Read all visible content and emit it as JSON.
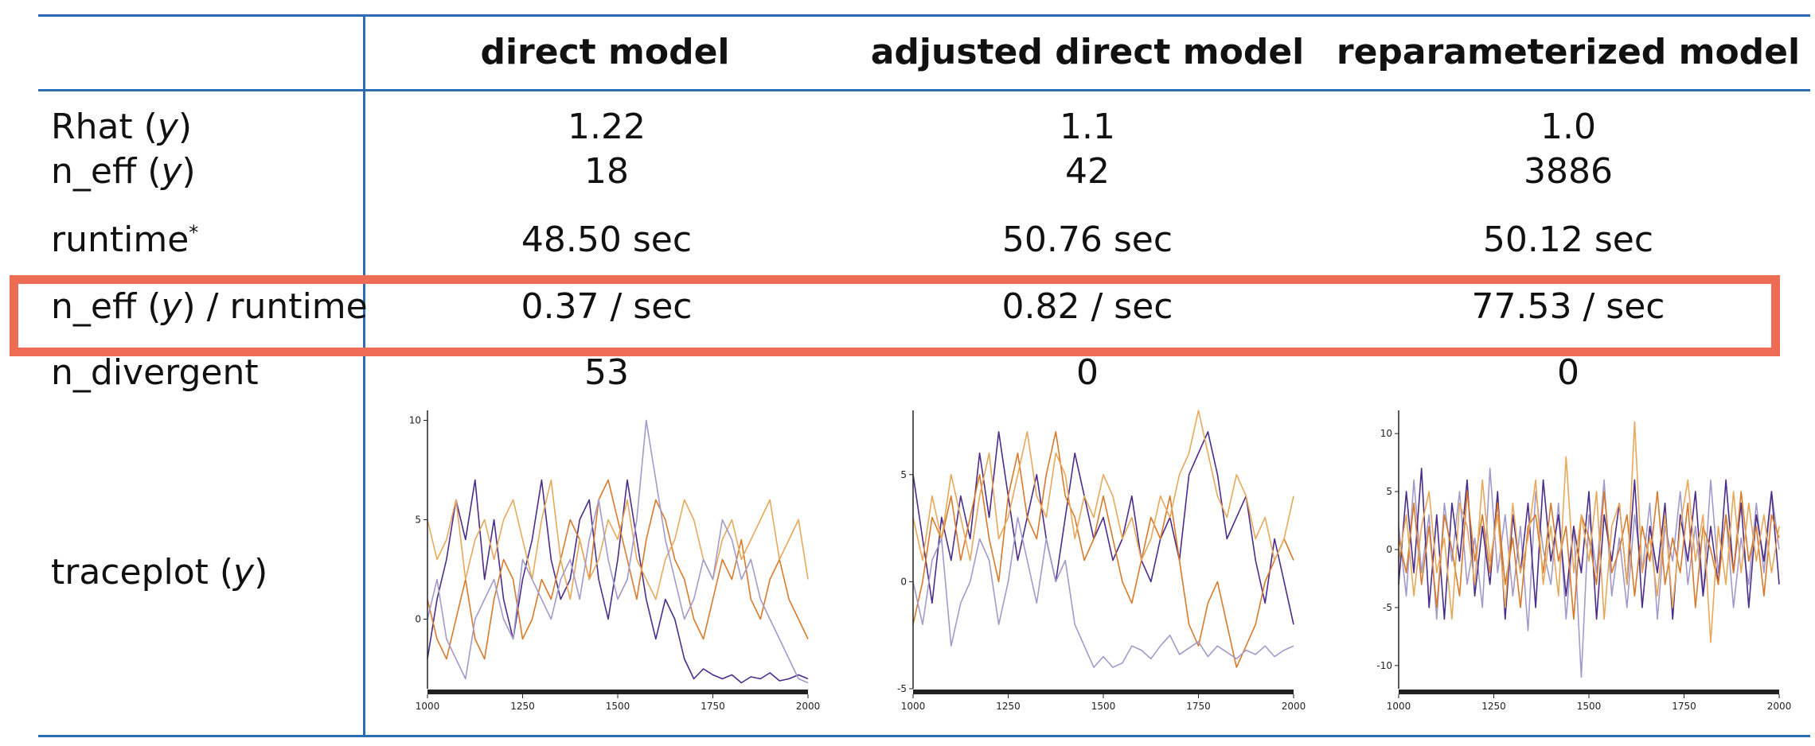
{
  "table": {
    "columns": [
      "direct model",
      "adjusted direct model",
      "reparameterized model"
    ],
    "rows": [
      {
        "label_prefix": "Rhat (",
        "label_var": "y",
        "label_suffix": ")",
        "values": [
          "1.22",
          "1.1",
          "1.0"
        ]
      },
      {
        "label_prefix": "n_eff (",
        "label_var": "y",
        "label_suffix": ")",
        "values": [
          "18",
          "42",
          "3886"
        ]
      },
      {
        "label_prefix": "runtime",
        "label_sup": "*",
        "values": [
          "48.50 sec",
          "50.76 sec",
          "50.12 sec"
        ]
      },
      {
        "label_prefix": "n_eff (",
        "label_var": "y",
        "label_suffix": ") / runtime",
        "values": [
          "0.37 / sec",
          "0.82 / sec",
          "77.53 / sec"
        ]
      },
      {
        "label_prefix": "n_divergent",
        "values": [
          "53",
          "0",
          "0"
        ]
      },
      {
        "label_prefix": "traceplot (",
        "label_var": "y",
        "label_suffix": ")"
      }
    ],
    "highlight_color": "#ee6b55",
    "rule_color": "#2d6bb5"
  },
  "chart_data": [
    {
      "type": "line",
      "title": "",
      "xlim": [
        1000,
        2000
      ],
      "ylim": [
        -3.5,
        10.5
      ],
      "xticks": [
        1000,
        1250,
        1500,
        1750,
        2000
      ],
      "yticks": [
        0,
        5,
        10
      ],
      "xlabel": "",
      "ylabel": "",
      "grid": false,
      "series": [
        {
          "color": "#4b2c8a",
          "values": [
            -2,
            1,
            3,
            6,
            4,
            7,
            2,
            5,
            1,
            -1,
            2,
            4,
            7,
            3,
            1,
            2,
            5,
            6,
            2,
            0,
            3,
            7,
            4,
            1,
            -1,
            1,
            0,
            -2,
            -3,
            -2.5,
            -2.8,
            -3,
            -2.8,
            -3.2,
            -2.9,
            -3,
            -2.7,
            -3.1,
            -3,
            -2.8,
            -3
          ]
        },
        {
          "color": "#d97a2a",
          "values": [
            1,
            -1,
            -2,
            0,
            2,
            -1,
            -2,
            1,
            3,
            2,
            -1,
            0,
            2,
            1,
            3,
            5,
            4,
            2,
            6,
            7,
            5,
            3,
            1,
            4,
            6,
            5,
            3,
            2,
            0,
            -1,
            1,
            3,
            2,
            4,
            1,
            0,
            2,
            3,
            1,
            0,
            -1
          ]
        },
        {
          "color": "#e8a85a",
          "values": [
            5,
            3,
            4,
            6,
            2,
            4,
            5,
            3,
            5,
            6,
            4,
            2,
            5,
            7,
            3,
            1,
            4,
            2,
            3,
            5,
            4,
            6,
            3,
            2,
            1,
            3,
            4,
            6,
            5,
            3,
            2,
            4,
            5,
            3,
            4,
            5,
            6,
            3,
            4,
            5,
            2
          ]
        },
        {
          "color": "#a39acb",
          "values": [
            0,
            2,
            -1,
            -2,
            -3,
            0,
            1,
            2,
            0,
            -1,
            3,
            2,
            1,
            0,
            2,
            3,
            1,
            4,
            6,
            3,
            1,
            2,
            5,
            10,
            7,
            4,
            2,
            0,
            1,
            3,
            2,
            5,
            4,
            2,
            3,
            1,
            0,
            -1,
            -2,
            -3,
            -3.2
          ]
        }
      ]
    },
    {
      "type": "line",
      "title": "",
      "xlim": [
        1000,
        2000
      ],
      "ylim": [
        -5,
        8
      ],
      "xticks": [
        1000,
        1250,
        1500,
        1750,
        2000
      ],
      "yticks": [
        -5,
        0,
        5
      ],
      "xlabel": "",
      "ylabel": "",
      "grid": false,
      "series": [
        {
          "color": "#4b2c8a",
          "values": [
            5,
            2,
            -1,
            3,
            1,
            4,
            2,
            6,
            3,
            7,
            4,
            1,
            3,
            5,
            2,
            0,
            3,
            6,
            4,
            2,
            3,
            1,
            2,
            4,
            1,
            0,
            2,
            3,
            1,
            5,
            6,
            7,
            5,
            2,
            3,
            4,
            1,
            -1,
            2,
            0,
            -2
          ]
        },
        {
          "color": "#d97a2a",
          "values": [
            -2,
            0,
            3,
            2,
            4,
            1,
            3,
            5,
            2,
            0,
            4,
            6,
            3,
            2,
            5,
            7,
            4,
            3,
            1,
            2,
            4,
            2,
            0,
            -1,
            1,
            3,
            2,
            4,
            1,
            -2,
            -3,
            -1,
            0,
            -2,
            -4,
            -3,
            -2,
            0,
            1,
            2,
            1
          ]
        },
        {
          "color": "#e8a85a",
          "values": [
            3,
            1,
            4,
            2,
            5,
            3,
            1,
            4,
            6,
            2,
            3,
            5,
            7,
            4,
            3,
            6,
            5,
            2,
            4,
            3,
            5,
            4,
            2,
            3,
            1,
            2,
            4,
            3,
            5,
            6,
            8,
            6,
            4,
            3,
            5,
            4,
            2,
            3,
            1,
            2,
            4
          ]
        },
        {
          "color": "#a39acb",
          "values": [
            0,
            -2,
            1,
            2,
            -3,
            -1,
            0,
            2,
            1,
            -2,
            0,
            3,
            1,
            -1,
            2,
            0,
            1,
            -2,
            -3,
            -4,
            -3.5,
            -4,
            -3.8,
            -3,
            -3.2,
            -3.6,
            -3,
            -2.5,
            -3.4,
            -3.1,
            -2.8,
            -3.5,
            -3,
            -3.3,
            -3.6,
            -3.2,
            -3.4,
            -3,
            -3.5,
            -3.2,
            -3
          ]
        }
      ]
    },
    {
      "type": "line",
      "title": "",
      "xlim": [
        1000,
        2000
      ],
      "ylim": [
        -12,
        12
      ],
      "xticks": [
        1000,
        1250,
        1500,
        1750,
        2000
      ],
      "yticks": [
        -10,
        -5,
        0,
        5,
        10
      ],
      "xlabel": "",
      "ylabel": "",
      "grid": false,
      "series": [
        {
          "color": "#a39acb",
          "values": [
            2,
            -4,
            6,
            -2,
            3,
            -6,
            4,
            -1,
            5,
            -3,
            1,
            -5,
            7,
            -2,
            3,
            -4,
            2,
            -7,
            5,
            0,
            -3,
            4,
            -6,
            2,
            -11,
            3,
            -2,
            6,
            -4,
            1,
            -5,
            3,
            -2,
            4,
            -6,
            2,
            -1,
            5,
            -3,
            2,
            -4,
            6,
            -2,
            3,
            -5,
            1,
            -3,
            4,
            -2,
            5,
            0
          ]
        },
        {
          "color": "#4b2c8a",
          "values": [
            -3,
            5,
            -2,
            7,
            -5,
            3,
            -6,
            4,
            -1,
            6,
            -4,
            2,
            -3,
            5,
            -6,
            3,
            -2,
            4,
            -5,
            6,
            -1,
            3,
            -4,
            2,
            -2,
            5,
            -6,
            3,
            -1,
            4,
            -3,
            6,
            -5,
            2,
            -2,
            4,
            -6,
            3,
            -1,
            5,
            -4,
            2,
            -3,
            6,
            -2,
            4,
            -5,
            3,
            -1,
            5,
            -3
          ]
        },
        {
          "color": "#d97a2a",
          "values": [
            1,
            -2,
            4,
            -3,
            2,
            -5,
            3,
            0,
            -4,
            5,
            -1,
            3,
            -2,
            4,
            -3,
            1,
            -5,
            2,
            3,
            -2,
            4,
            -1,
            2,
            -6,
            3,
            1,
            -3,
            5,
            -2,
            0,
            3,
            -4,
            2,
            -1,
            5,
            -3,
            1,
            -2,
            4,
            -5,
            2,
            0,
            -3,
            3,
            -2,
            5,
            -1,
            2,
            -4,
            3,
            1
          ]
        },
        {
          "color": "#e8a85a",
          "values": [
            -1,
            3,
            -4,
            2,
            5,
            -2,
            1,
            -6,
            4,
            2,
            -3,
            6,
            -1,
            3,
            -5,
            4,
            -2,
            1,
            6,
            -3,
            2,
            -4,
            8,
            -2,
            3,
            -1,
            5,
            -6,
            2,
            4,
            -3,
            11,
            -2,
            1,
            -4,
            3,
            -5,
            2,
            6,
            -1,
            3,
            -8,
            2,
            -3,
            5,
            -2,
            4,
            -1,
            3,
            -2,
            2
          ]
        }
      ]
    }
  ]
}
